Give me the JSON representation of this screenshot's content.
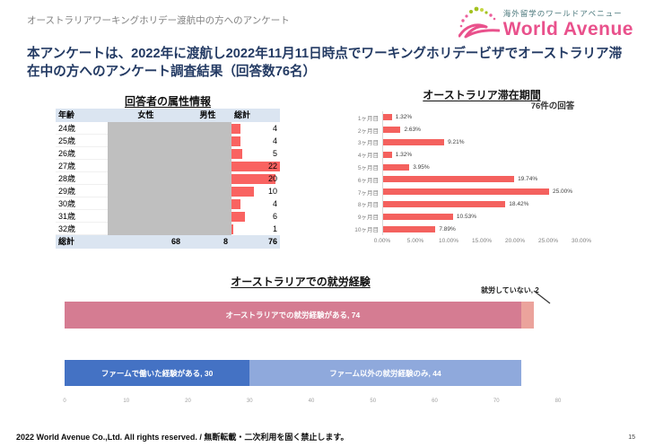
{
  "header": {
    "note": "オーストラリアワーキングホリデー渡航中の方へのアンケート",
    "logo_tagline": "海外留学のワールドアベニュー",
    "logo_brand": "World Avenue"
  },
  "title": "本アンケートは、2022年に渡航し2022年11月11日時点でワーキングホリデービザでオーストラリア滞在中の方へのアンケート調査結果（回答数76名）",
  "colors": {
    "brand_pink": "#e9518c",
    "title_navy": "#233a63",
    "table_header_bg": "#dbe5f1",
    "masked_cell_gray": "#bfbfbf",
    "databar_red": "#f96361",
    "stay_bar_red": "#f4615e",
    "work_rose": "#d57c92",
    "work_rose_light": "#eba39c",
    "work_blue": "#4472c4",
    "work_blue_light": "#8fa9dc"
  },
  "chart_data": [
    {
      "type": "table",
      "title": "回答者の属性情報",
      "columns": [
        "年齢",
        "女性",
        "男性",
        "総計"
      ],
      "masked_columns": [
        "女性",
        "男性"
      ],
      "rows": [
        {
          "age": "24歳",
          "total": 4
        },
        {
          "age": "25歳",
          "total": 4
        },
        {
          "age": "26歳",
          "total": 5
        },
        {
          "age": "27歳",
          "total": 22
        },
        {
          "age": "28歳",
          "total": 20
        },
        {
          "age": "29歳",
          "total": 10
        },
        {
          "age": "30歳",
          "total": 4
        },
        {
          "age": "31歳",
          "total": 6
        },
        {
          "age": "32歳",
          "total": 1
        }
      ],
      "databar_max": 22,
      "total_row": [
        "総計",
        "68",
        "8",
        "76"
      ]
    },
    {
      "type": "bar",
      "orientation": "horizontal",
      "title": "オーストラリア滞在期間",
      "note": "76件の回答",
      "categories": [
        "1ヶ月目",
        "2ヶ月目",
        "3ヶ月目",
        "4ヶ月目",
        "5ヶ月目",
        "6ヶ月目",
        "7ヶ月目",
        "8ヶ月目",
        "9ヶ月目",
        "10ヶ月目"
      ],
      "values": [
        1.32,
        2.63,
        9.21,
        1.32,
        3.95,
        19.74,
        25.0,
        18.42,
        10.53,
        7.89
      ],
      "value_labels": [
        "1.32%",
        "2.63%",
        "9.21%",
        "1.32%",
        "3.95%",
        "19.74%",
        "25.00%",
        "18.42%",
        "10.53%",
        "7.89%"
      ],
      "xlim": [
        0,
        30
      ],
      "x_ticks": [
        "0.00%",
        "5.00%",
        "10.00%",
        "15.00%",
        "20.00%",
        "25.00%",
        "30.00%"
      ],
      "grid": false,
      "legend": "none"
    },
    {
      "type": "bar",
      "orientation": "horizontal-stacked",
      "title": "オーストラリアでの就労経験",
      "xlim": [
        0,
        80
      ],
      "x_ticks": [
        "0",
        "10",
        "20",
        "30",
        "40",
        "50",
        "60",
        "70",
        "80"
      ],
      "callout": {
        "label": "就労していない, 2",
        "value": 2
      },
      "bars": [
        {
          "segments": [
            {
              "label": "オーストラリアでの就労経験がある, 74",
              "value": 74,
              "color": "#d57c92",
              "show_label": true
            },
            {
              "label": "就労していない, 2",
              "value": 2,
              "color": "#eba39c",
              "show_label": false
            }
          ]
        },
        {
          "segments": [
            {
              "label": "ファームで働いた経験がある, 30",
              "value": 30,
              "color": "#4472c4",
              "show_label": true
            },
            {
              "label": "ファーム以外の就労経験のみ, 44",
              "value": 44,
              "color": "#8fa9dc",
              "show_label": true
            }
          ]
        }
      ],
      "grid": false,
      "legend": "none"
    }
  ],
  "footer": {
    "copyright_en": "2022 World Avenue Co.,Ltd. All rights reserved. /",
    "copyright_ja": " 無断転載・二次利用を固く禁止します。",
    "page_number": "15"
  }
}
